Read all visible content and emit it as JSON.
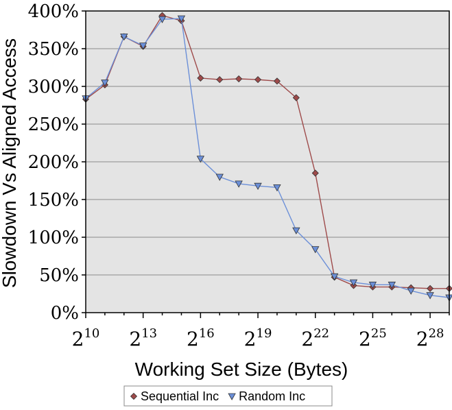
{
  "chart_data": {
    "type": "line",
    "title": "",
    "xlabel": "Working Set Size (Bytes)",
    "ylabel": "Slowdown Vs Aligned Access",
    "x": [
      10,
      11,
      12,
      13,
      14,
      15,
      16,
      17,
      18,
      19,
      20,
      21,
      22,
      23,
      24,
      25,
      26,
      27,
      28,
      29
    ],
    "xlim": [
      10,
      29
    ],
    "x_scale": "log2",
    "x_ticks": [
      {
        "value": 10,
        "base": "2",
        "exp": "10"
      },
      {
        "value": 13,
        "base": "2",
        "exp": "13"
      },
      {
        "value": 16,
        "base": "2",
        "exp": "16"
      },
      {
        "value": 19,
        "base": "2",
        "exp": "19"
      },
      {
        "value": 22,
        "base": "2",
        "exp": "22"
      },
      {
        "value": 25,
        "base": "2",
        "exp": "25"
      },
      {
        "value": 28,
        "base": "2",
        "exp": "28"
      }
    ],
    "ylim": [
      0,
      400
    ],
    "y_ticks": [
      {
        "value": 0,
        "label": "0%"
      },
      {
        "value": 50,
        "label": "50%"
      },
      {
        "value": 100,
        "label": "100%"
      },
      {
        "value": 150,
        "label": "150%"
      },
      {
        "value": 200,
        "label": "200%"
      },
      {
        "value": 250,
        "label": "250%"
      },
      {
        "value": 300,
        "label": "300%"
      },
      {
        "value": 350,
        "label": "350%"
      },
      {
        "value": 400,
        "label": "400%"
      }
    ],
    "grid": true,
    "legend_position": "bottom",
    "background_color": "#e4e4e4",
    "series": [
      {
        "name": "Sequential Inc",
        "color": "#9e4a4a",
        "marker": "diamond",
        "values": [
          283,
          302,
          366,
          353,
          394,
          387,
          311,
          309,
          310,
          309,
          307,
          285,
          185,
          47,
          36,
          34,
          34,
          33,
          32,
          32
        ]
      },
      {
        "name": "Random Inc",
        "color": "#6b8fd8",
        "marker": "triangle-down",
        "values": [
          284,
          305,
          366,
          354,
          389,
          390,
          204,
          180,
          171,
          168,
          166,
          109,
          84,
          48,
          40,
          37,
          37,
          29,
          23,
          20
        ]
      }
    ]
  }
}
